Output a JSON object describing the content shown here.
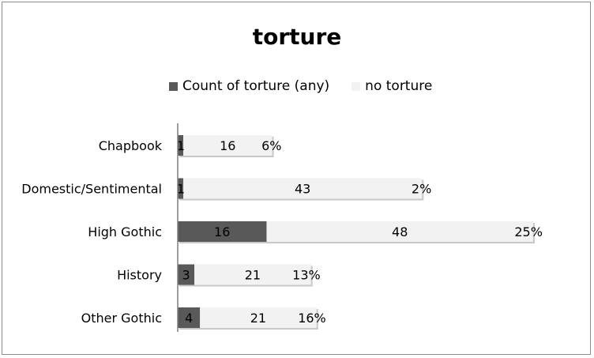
{
  "chart_data": {
    "type": "bar",
    "orientation": "horizontal",
    "stacked": true,
    "title": "torture",
    "categories": [
      "Chapbook",
      "Domestic/Sentimental",
      "High Gothic",
      "History",
      "Other Gothic"
    ],
    "series": [
      {
        "name": "Count of torture (any)",
        "values": [
          1,
          1,
          16,
          3,
          4
        ],
        "color": "#595959"
      },
      {
        "name": "no torture",
        "values": [
          16,
          43,
          48,
          21,
          21
        ],
        "color": "#f2f2f2"
      }
    ],
    "percent_labels": [
      "6%",
      "2%",
      "25%",
      "13%",
      "16%"
    ],
    "legend_position": "top",
    "grid": false
  }
}
